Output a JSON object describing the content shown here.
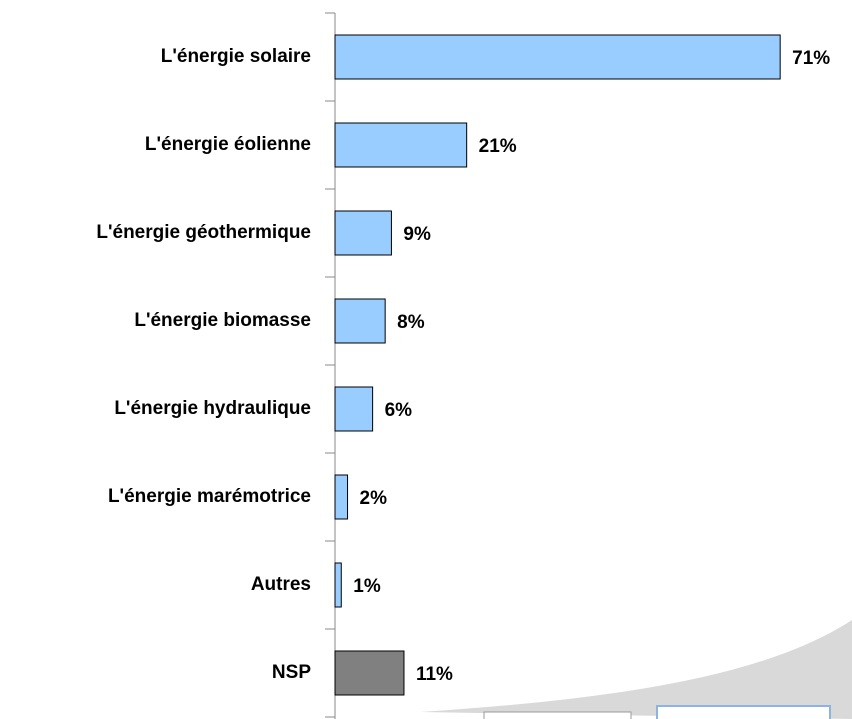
{
  "chart_data": {
    "type": "bar",
    "orientation": "horizontal",
    "categories": [
      "L'énergie solaire",
      "L'énergie éolienne",
      "L'énergie géothermique",
      "L'énergie biomasse",
      "L'énergie hydraulique",
      "L'énergie marémotrice",
      "Autres",
      "NSP"
    ],
    "values": [
      71,
      21,
      9,
      8,
      6,
      2,
      1,
      11
    ],
    "value_labels": [
      "71%",
      "21%",
      "9%",
      "8%",
      "6%",
      "2%",
      "1%",
      "11%"
    ],
    "colors": [
      "#99ccff",
      "#99ccff",
      "#99ccff",
      "#99ccff",
      "#99ccff",
      "#99ccff",
      "#99ccff",
      "#808080"
    ]
  }
}
